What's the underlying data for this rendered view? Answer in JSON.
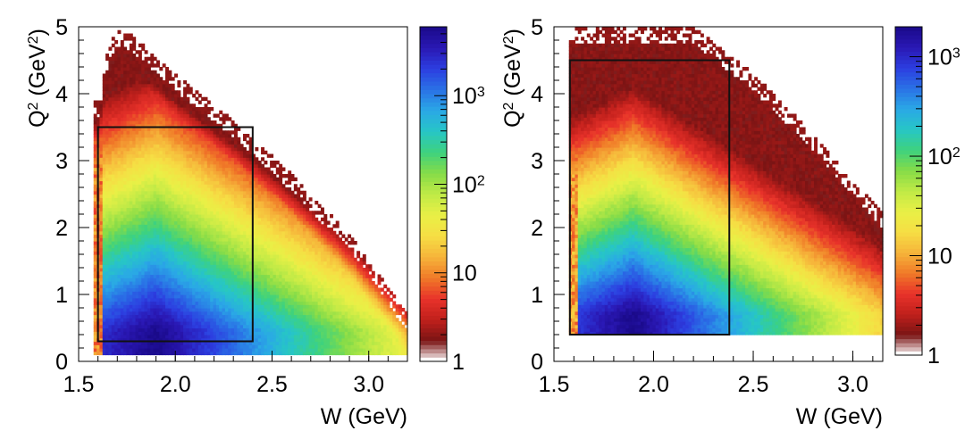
{
  "chart_data": [
    {
      "type": "heatmap",
      "title": "",
      "xlabel": "W (GeV)",
      "ylabel_main": "Q",
      "ylabel_sup": "2",
      "ylabel_unit": " (GeV",
      "ylabel_unit_sup": "2",
      "ylabel_close": ")",
      "xlim": [
        1.5,
        3.2
      ],
      "ylim": [
        0,
        5
      ],
      "xticks": [
        "1.5",
        "2.0",
        "2.5",
        "3.0"
      ],
      "yticks": [
        "0",
        "1",
        "2",
        "3",
        "4",
        "5"
      ],
      "color_scale": "log",
      "zlim": [
        1,
        6000
      ],
      "colorbar_ticks": [
        {
          "label": "1"
        },
        {
          "label": "10"
        },
        {
          "label": "10",
          "sup": "2"
        },
        {
          "label": "10",
          "sup": "3"
        }
      ],
      "selection_box": {
        "w_min": 1.6,
        "w_max": 2.4,
        "q2_min": 0.3,
        "q2_max": 3.5
      },
      "kinematic_region": {
        "upper_edge": [
          [
            1.6,
            3.9
          ],
          [
            1.66,
            4.8
          ],
          [
            1.72,
            5.0
          ],
          [
            1.85,
            4.7
          ],
          [
            2.0,
            4.3
          ],
          [
            2.3,
            3.6
          ],
          [
            2.6,
            2.8
          ],
          [
            2.9,
            1.9
          ],
          [
            3.2,
            0.7
          ]
        ],
        "lower_edge_q2": 0.1
      }
    },
    {
      "type": "heatmap",
      "title": "",
      "xlabel": "W (GeV)",
      "ylabel_main": "Q",
      "ylabel_sup": "2",
      "ylabel_unit": " (GeV",
      "ylabel_unit_sup": "2",
      "ylabel_close": ")",
      "xlim": [
        1.5,
        3.15
      ],
      "ylim": [
        0,
        5
      ],
      "xticks": [
        "1.5",
        "2.0",
        "2.5",
        "3.0"
      ],
      "yticks": [
        "0",
        "1",
        "2",
        "3",
        "4",
        "5"
      ],
      "color_scale": "log",
      "zlim": [
        1,
        2000
      ],
      "colorbar_ticks": [
        {
          "label": "1"
        },
        {
          "label": "10"
        },
        {
          "label": "10",
          "sup": "2"
        },
        {
          "label": "10",
          "sup": "3"
        }
      ],
      "selection_box": {
        "w_min": 1.58,
        "w_max": 2.38,
        "q2_min": 0.4,
        "q2_max": 4.5
      },
      "kinematic_region": {
        "upper_edge": [
          [
            1.6,
            5.0
          ],
          [
            2.2,
            5.0
          ],
          [
            2.5,
            4.3
          ],
          [
            2.8,
            3.4
          ],
          [
            3.15,
            2.2
          ]
        ],
        "lower_edge_q2": 0.4
      }
    }
  ]
}
